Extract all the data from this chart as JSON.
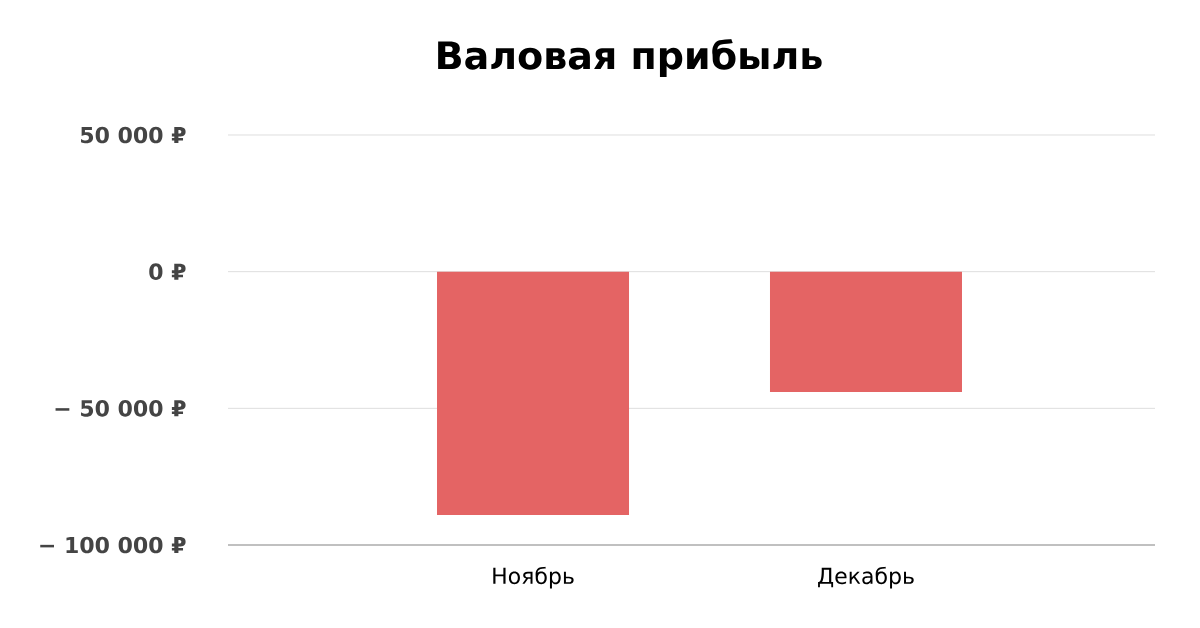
{
  "chart_data": {
    "type": "bar",
    "title": "Валовая прибыль",
    "categories": [
      "Ноябрь",
      "Декабрь"
    ],
    "values": [
      -89000,
      -44000
    ],
    "color": "#e46464",
    "ylim": [
      -100000,
      50000
    ],
    "yticks": [
      {
        "value": -100000,
        "label": "− 100 000 ₽"
      },
      {
        "value": -50000,
        "label": "− 50 000 ₽"
      },
      {
        "value": 0,
        "label": "0 ₽"
      },
      {
        "value": 50000,
        "label": "50 000 ₽"
      }
    ],
    "grid": "y"
  }
}
